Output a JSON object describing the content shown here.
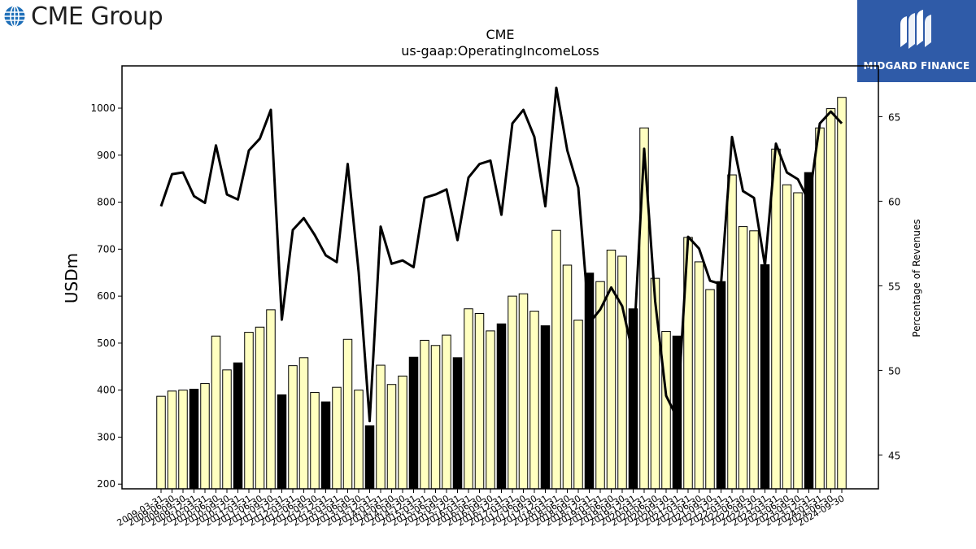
{
  "header": {
    "left_logo_text": "CME Group",
    "right_logo_text": "MIDGARD FINANCE"
  },
  "icons": {
    "left_logo": "globe-icon",
    "right_logo": "midgard-mark-icon"
  },
  "colors": {
    "bar_light": "#ffffc0",
    "bar_dark": "#000000",
    "line": "#000000",
    "logo_bg": "#2f5ba8"
  },
  "chart_data": {
    "type": "bar",
    "title": "CME",
    "subtitle": "us-gaap:OperatingIncomeLoss",
    "ylabel": "USDm",
    "y2label": "Percentage of Revenues",
    "ylim": [
      190,
      1090
    ],
    "y2lim": [
      43,
      68
    ],
    "yticks": [
      200,
      300,
      400,
      500,
      600,
      700,
      800,
      900,
      1000
    ],
    "y2ticks": [
      45,
      50,
      55,
      60,
      65
    ],
    "categories": [
      "2009-03-31",
      "2009-06-30",
      "2009-09-30",
      "2009-12-31",
      "2010-03-31",
      "2010-06-30",
      "2010-09-30",
      "2010-12-31",
      "2011-03-31",
      "2011-06-30",
      "2011-09-30",
      "2011-12-31",
      "2012-03-31",
      "2012-06-30",
      "2012-09-30",
      "2012-12-31",
      "2013-03-31",
      "2013-06-30",
      "2013-09-30",
      "2013-12-31",
      "2014-03-31",
      "2014-06-30",
      "2014-09-30",
      "2014-12-31",
      "2015-03-31",
      "2015-06-30",
      "2015-09-30",
      "2015-12-31",
      "2016-03-31",
      "2016-06-30",
      "2016-09-30",
      "2016-12-31",
      "2017-03-31",
      "2017-06-30",
      "2017-09-30",
      "2017-12-31",
      "2018-03-31",
      "2018-06-30",
      "2018-09-30",
      "2018-12-31",
      "2019-03-31",
      "2019-06-30",
      "2019-09-30",
      "2019-12-31",
      "2020-03-31",
      "2020-06-30",
      "2020-09-30",
      "2020-12-31",
      "2021-03-31",
      "2021-06-30",
      "2021-09-30",
      "2021-12-31",
      "2022-03-31",
      "2022-06-30",
      "2022-09-30",
      "2022-12-31",
      "2023-03-31",
      "2023-06-30",
      "2023-09-30",
      "2023-12-31",
      "2024-03-31",
      "2024-06-30",
      "2024-09-30"
    ],
    "xtick_labels": [
      "2009-03-31",
      "2009-06-30",
      "2009-09-30",
      "2009-12-31",
      "2010-03-31",
      "2010-06-30",
      "2010-09-30",
      "2010-12-31",
      "2011-03-31",
      "2011-06-30",
      "2011-09-30",
      "2011-12-31",
      "2012-03-31",
      "2012-06-30",
      "2012-09-30",
      "2012-12-31",
      "2013-03-31",
      "2013-06-30",
      "2013-09-30",
      "2013-12-31",
      "2014-03-31",
      "2014-06-30",
      "2014-09-30",
      "2014-12-31",
      "2015-03-31",
      "2015-06-30",
      "2015-09-30",
      "2015-12-31",
      "2016-03-31",
      "2016-06-30",
      "2016-09-30",
      "2016-12-31",
      "2017-03-31",
      "2017-06-30",
      "2017-09-30",
      "2017-12-31",
      "2018-03-31",
      "2018-06-30",
      "2018-09-30",
      "2018-12-31",
      "2019-03-31",
      "2019-06-30",
      "2019-09-30",
      "2019-12-31",
      "2020-03-31",
      "2020-06-30",
      "2020-09-30",
      "2020-12-31",
      "2021-03-31",
      "2021-06-30",
      "2021-09-30",
      "2021-12-31",
      "2022-03-31",
      "2022-06-30",
      "2022-09-30",
      "2022-12-31",
      "2023-03-31",
      "2023-06-30",
      "2023-09-30",
      "2023-12-31",
      "2024-03-31",
      "2024-06-30",
      "2024-09-30"
    ],
    "series": [
      {
        "kind": "bar",
        "axis": "left",
        "values": [
          387,
          398,
          400,
          402,
          414,
          515,
          443,
          458,
          523,
          534,
          571,
          390,
          452,
          469,
          395,
          375,
          406,
          508,
          400,
          324,
          453,
          412,
          430,
          470,
          506,
          495,
          517,
          469,
          573,
          563,
          526,
          541,
          600,
          605,
          568,
          537,
          740,
          666,
          549,
          649,
          631,
          698,
          685,
          573,
          958,
          638,
          525,
          515,
          725,
          673,
          614,
          631,
          858,
          748,
          739,
          667,
          913,
          837,
          820,
          863,
          958,
          999,
          1023
        ],
        "highlight": [
          0,
          0,
          0,
          1,
          0,
          0,
          0,
          1,
          0,
          0,
          0,
          1,
          0,
          0,
          0,
          1,
          0,
          0,
          0,
          1,
          0,
          0,
          0,
          1,
          0,
          0,
          0,
          1,
          0,
          0,
          0,
          1,
          0,
          0,
          0,
          1,
          0,
          0,
          0,
          1,
          0,
          0,
          0,
          1,
          0,
          0,
          0,
          1,
          0,
          0,
          0,
          1,
          0,
          0,
          0,
          1,
          0,
          0,
          0,
          1,
          0,
          0,
          0
        ]
      },
      {
        "kind": "line",
        "axis": "right",
        "values": [
          59.7,
          61.6,
          61.7,
          60.3,
          59.9,
          63.3,
          60.4,
          60.1,
          63.0,
          63.7,
          65.4,
          53.0,
          58.3,
          59.0,
          58.0,
          56.8,
          56.4,
          62.2,
          55.8,
          47.0,
          58.5,
          56.3,
          56.5,
          56.1,
          60.2,
          60.4,
          60.7,
          57.7,
          61.4,
          62.2,
          62.4,
          59.2,
          64.6,
          65.4,
          63.8,
          59.7,
          66.7,
          63.0,
          60.8,
          52.8,
          53.6,
          54.9,
          53.8,
          50.9,
          63.1,
          54.1,
          48.5,
          47.2,
          57.9,
          57.2,
          55.3,
          55.1,
          63.8,
          60.6,
          60.2,
          56.2,
          63.4,
          61.7,
          61.3,
          60.0,
          64.6,
          65.3,
          64.6
        ]
      }
    ],
    "grid": false,
    "legend": "none"
  }
}
